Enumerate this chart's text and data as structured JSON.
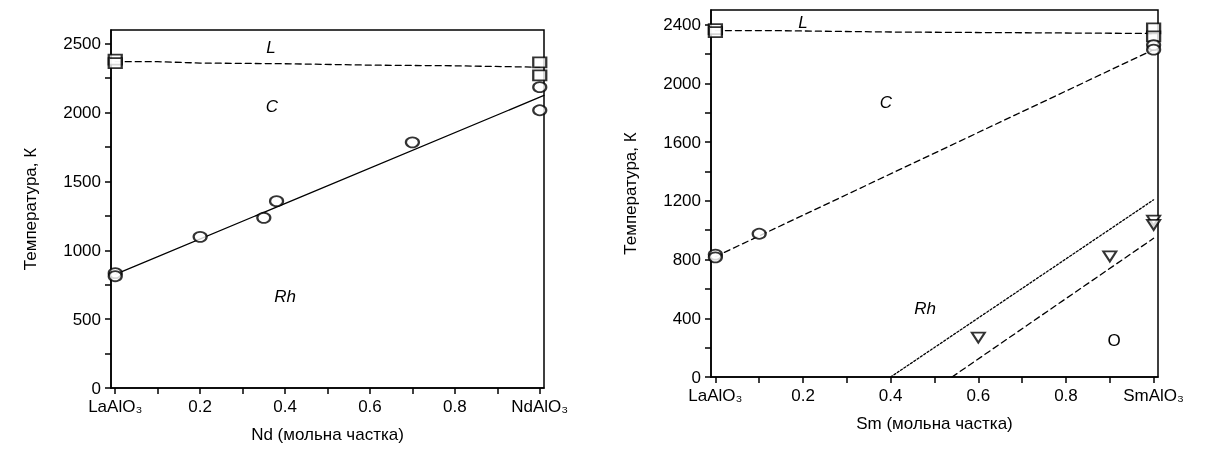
{
  "chart_data": [
    {
      "type": "scatter",
      "xlabel": "Nd (мольна частка)",
      "ylabel": "Температура, К",
      "xlim": [
        -0.01,
        1.01
      ],
      "ylim": [
        0,
        2600
      ],
      "xticks": [
        {
          "value": 0,
          "label": "LaAlO₃"
        },
        {
          "value": 0.1,
          "label": null
        },
        0.2,
        {
          "value": 0.3,
          "label": null
        },
        0.4,
        {
          "value": 0.5,
          "label": null
        },
        0.6,
        {
          "value": 0.7,
          "label": null
        },
        0.8,
        {
          "value": 0.9,
          "label": null
        },
        {
          "value": 1,
          "label": "NdAlO₃"
        }
      ],
      "yticks": [
        0,
        {
          "value": 250,
          "label": null
        },
        500,
        {
          "value": 750,
          "label": null
        },
        1000,
        {
          "value": 1250,
          "label": null
        },
        1500,
        {
          "value": 1750,
          "label": null
        },
        2000,
        {
          "value": 2250,
          "label": null
        },
        2500
      ],
      "grid": false,
      "series": [
        {
          "type": "line",
          "color": "#000000",
          "line_style": "dashed",
          "marker": "none",
          "x": [
            0,
            0.1,
            0.2,
            0.4,
            0.6,
            0.8,
            1
          ],
          "values": [
            2370,
            2370,
            2360,
            2355,
            2345,
            2340,
            2330
          ]
        },
        {
          "type": "line",
          "color": "#000000",
          "line_style": "solid",
          "marker": "none",
          "x": [
            0,
            1.01
          ],
          "values": [
            825,
            2125
          ]
        },
        {
          "type": "scatter",
          "color": "#000000",
          "marker": "square",
          "x": [
            0,
            0,
            1,
            1
          ],
          "values": [
            2385,
            2360,
            2365,
            2270
          ]
        },
        {
          "type": "scatter",
          "color": "#000000",
          "marker": "circle",
          "x": [
            0,
            0,
            0.2,
            0.35,
            0.38,
            0.7,
            1,
            1
          ],
          "values": [
            834,
            812,
            1098,
            1236,
            1357,
            1784,
            2185,
            2017
          ]
        }
      ],
      "annotations": [
        "L",
        "C",
        "Rh"
      ]
    },
    {
      "type": "scatter",
      "xlabel": "Sm (мольна частка)",
      "ylabel": "Температура, К",
      "xlim": [
        -0.01,
        1.01
      ],
      "ylim": [
        0,
        2500
      ],
      "xticks": [
        {
          "value": 0,
          "label": "LaAlO₃"
        },
        {
          "value": 0.1,
          "label": null
        },
        0.2,
        {
          "value": 0.3,
          "label": null
        },
        0.4,
        {
          "value": 0.5,
          "label": null
        },
        0.6,
        {
          "value": 0.7,
          "label": null
        },
        0.8,
        {
          "value": 0.9,
          "label": null
        },
        {
          "value": 1,
          "label": "SmAlO₃"
        }
      ],
      "yticks": [
        0,
        {
          "value": 200,
          "label": null
        },
        400,
        {
          "value": 600,
          "label": null
        },
        800,
        {
          "value": 1000,
          "label": null
        },
        1200,
        {
          "value": 1400,
          "label": null
        },
        1600,
        {
          "value": 1800,
          "label": null
        },
        2000,
        {
          "value": 2200,
          "label": null
        },
        2400
      ],
      "grid": false,
      "series": [
        {
          "type": "line",
          "color": "#000000",
          "line_style": "dashed",
          "marker": "none",
          "x": [
            0,
            0.12,
            0.4,
            0.7,
            1
          ],
          "values": [
            2360,
            2360,
            2350,
            2345,
            2340
          ]
        },
        {
          "type": "line",
          "color": "#000000",
          "line_style": "dashed",
          "marker": "none",
          "x": [
            0,
            1
          ],
          "values": [
            820,
            2230
          ]
        },
        {
          "type": "line",
          "color": "#000000",
          "line_style": "dotted",
          "marker": "none",
          "x": [
            0.4,
            1
          ],
          "values": [
            0,
            1207
          ]
        },
        {
          "type": "line",
          "color": "#000000",
          "line_style": "dashed",
          "marker": "none",
          "x": [
            0.54,
            1
          ],
          "values": [
            0,
            945
          ]
        },
        {
          "type": "scatter",
          "color": "#000000",
          "marker": "square",
          "x": [
            0,
            0,
            1,
            1
          ],
          "values": [
            2370,
            2350,
            2374,
            2321
          ]
        },
        {
          "type": "scatter",
          "color": "#000000",
          "marker": "circle",
          "x": [
            0,
            0,
            0.1,
            1,
            1
          ],
          "values": [
            834,
            815,
            976,
            2261,
            2230
          ]
        },
        {
          "type": "scatter",
          "color": "#000000",
          "marker": "triangle",
          "x": [
            0.6,
            0.9,
            1,
            1
          ],
          "values": [
            268,
            821,
            1065,
            1036
          ]
        }
      ],
      "annotations": [
        "L",
        "C",
        "Rh",
        "O"
      ]
    }
  ]
}
